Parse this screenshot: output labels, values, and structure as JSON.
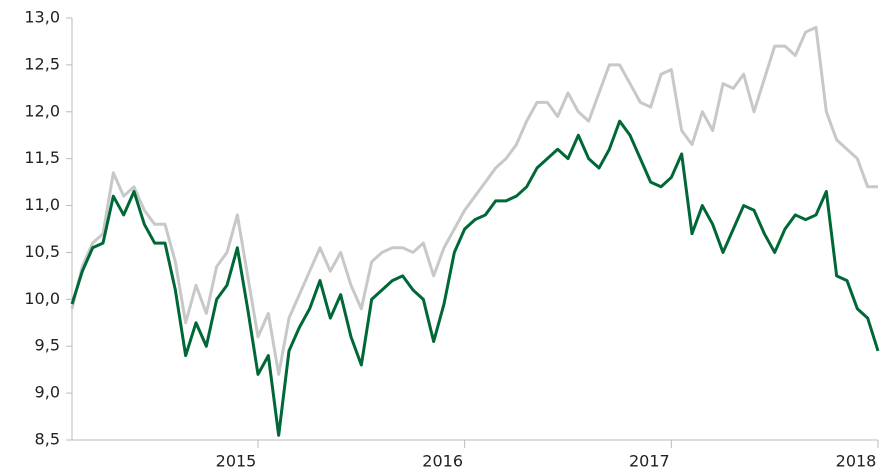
{
  "chart_data": {
    "type": "line",
    "x": [
      2014.1,
      2014.15,
      2014.2,
      2014.25,
      2014.3,
      2014.35,
      2014.4,
      2014.45,
      2014.5,
      2014.55,
      2014.6,
      2014.65,
      2014.7,
      2014.75,
      2014.8,
      2014.85,
      2014.9,
      2014.95,
      2015.0,
      2015.05,
      2015.1,
      2015.15,
      2015.2,
      2015.25,
      2015.3,
      2015.35,
      2015.4,
      2015.45,
      2015.5,
      2015.55,
      2015.6,
      2015.65,
      2015.7,
      2015.75,
      2015.8,
      2015.85,
      2015.9,
      2015.95,
      2016.0,
      2016.05,
      2016.1,
      2016.15,
      2016.2,
      2016.25,
      2016.3,
      2016.35,
      2016.4,
      2016.45,
      2016.5,
      2016.55,
      2016.6,
      2016.65,
      2016.7,
      2016.75,
      2016.8,
      2016.85,
      2016.9,
      2016.95,
      2017.0,
      2017.05,
      2017.1,
      2017.15,
      2017.2,
      2017.25,
      2017.3,
      2017.35,
      2017.4,
      2017.45,
      2017.5,
      2017.55,
      2017.6,
      2017.65,
      2017.7,
      2017.75,
      2017.8,
      2017.85,
      2017.9,
      2017.95,
      2018.0
    ],
    "series": [
      {
        "color": "#c8c8c8",
        "values": [
          9.9,
          10.35,
          10.6,
          10.7,
          11.35,
          11.1,
          11.2,
          10.95,
          10.8,
          10.8,
          10.4,
          9.75,
          10.15,
          9.85,
          10.35,
          10.5,
          10.9,
          10.25,
          9.6,
          9.85,
          9.2,
          9.8,
          10.05,
          10.3,
          10.55,
          10.3,
          10.5,
          10.15,
          9.9,
          10.4,
          10.5,
          10.55,
          10.55,
          10.5,
          10.6,
          10.25,
          10.55,
          10.75,
          10.95,
          11.1,
          11.25,
          11.4,
          11.5,
          11.65,
          11.9,
          12.1,
          12.1,
          11.95,
          12.2,
          12.0,
          11.9,
          12.2,
          12.5,
          12.5,
          12.3,
          12.1,
          12.05,
          12.4,
          12.45,
          11.8,
          11.65,
          12.0,
          11.8,
          12.3,
          12.25,
          12.4,
          12.0,
          12.35,
          12.7,
          12.7,
          12.6,
          12.85,
          12.9,
          12.0,
          11.7,
          11.6,
          11.5,
          11.2,
          11.2
        ]
      },
      {
        "color": "#006837",
        "values": [
          9.95,
          10.3,
          10.55,
          10.6,
          11.1,
          10.9,
          11.15,
          10.8,
          10.6,
          10.6,
          10.1,
          9.4,
          9.75,
          9.5,
          10.0,
          10.15,
          10.55,
          9.9,
          9.2,
          9.4,
          8.55,
          9.45,
          9.7,
          9.9,
          10.2,
          9.8,
          10.05,
          9.6,
          9.3,
          10.0,
          10.1,
          10.2,
          10.25,
          10.1,
          10.0,
          9.55,
          9.95,
          10.5,
          10.75,
          10.85,
          10.9,
          11.05,
          11.05,
          11.1,
          11.2,
          11.4,
          11.5,
          11.6,
          11.5,
          11.75,
          11.5,
          11.4,
          11.6,
          11.9,
          11.75,
          11.5,
          11.25,
          11.2,
          11.3,
          11.55,
          10.7,
          11.0,
          10.8,
          10.5,
          10.75,
          11.0,
          10.95,
          10.7,
          10.5,
          10.75,
          10.9,
          10.85,
          10.9,
          11.15,
          10.25,
          10.2,
          9.9,
          9.8,
          9.45
        ]
      }
    ],
    "xlim": [
      2014.1,
      2018.0
    ],
    "xticks": [
      2015,
      2016,
      2017,
      2018
    ],
    "ylim": [
      8.5,
      13.0
    ],
    "yticks": [
      {
        "value": 8.5,
        "label": "8,5"
      },
      {
        "value": 9.0,
        "label": "9,0"
      },
      {
        "value": 9.5,
        "label": "9,5"
      },
      {
        "value": 10.0,
        "label": "10,0"
      },
      {
        "value": 10.5,
        "label": "10,5"
      },
      {
        "value": 11.0,
        "label": "11,0"
      },
      {
        "value": 11.5,
        "label": "11,5"
      },
      {
        "value": 12.0,
        "label": "12,0"
      },
      {
        "value": 12.5,
        "label": "12,5"
      },
      {
        "value": 13.0,
        "label": "13,0"
      }
    ],
    "grid": false
  }
}
